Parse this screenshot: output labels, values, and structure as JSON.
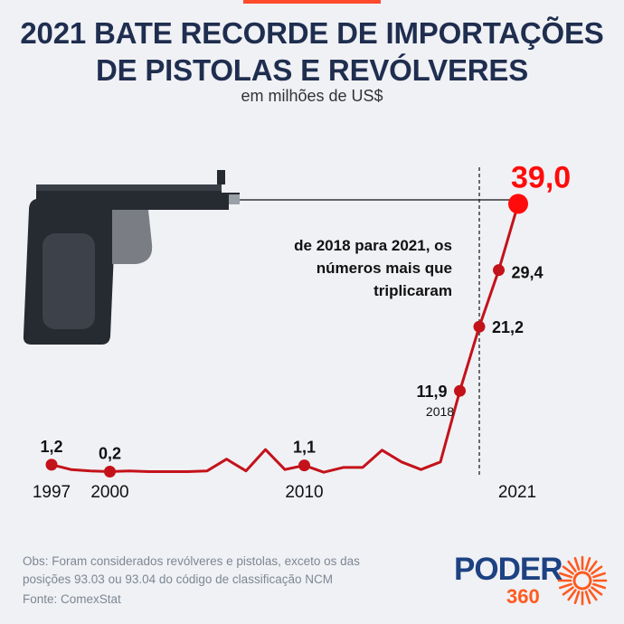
{
  "header": {
    "title_line1": "2021 BATE RECORDE DE IMPORTAÇÕES",
    "title_line2": "DE PISTOLAS E REVÓLVERES",
    "subtitle": "em milhões de US$"
  },
  "annotation": {
    "line1": "de 2018 para 2021, os",
    "line2": "números mais que",
    "line3": "triplicaram"
  },
  "footer": {
    "obs_line1": "Obs: Foram considerados revólveres e pistolas, exceto os das",
    "obs_line2": "posições 93.03 ou 93.04 do código de classificação NCM",
    "source": "Fonte: ComexStat"
  },
  "brand": {
    "name": "PODER",
    "number": "360"
  },
  "colors": {
    "series": "#c4121a",
    "highlight": "#ff0b0b",
    "title": "#1f2e4f"
  },
  "illustration": {
    "icon": "pistol-icon"
  },
  "chart_data": {
    "type": "line",
    "x": [
      1997,
      1998,
      1999,
      2000,
      2001,
      2002,
      2003,
      2004,
      2005,
      2006,
      2007,
      2008,
      2009,
      2010,
      2011,
      2012,
      2013,
      2014,
      2015,
      2016,
      2017,
      2018,
      2019,
      2020,
      2021
    ],
    "series": [
      {
        "values": [
          1.2,
          0.5,
          0.3,
          0.2,
          0.3,
          0.2,
          0.2,
          0.2,
          0.3,
          2.0,
          0.3,
          3.4,
          0.5,
          1.1,
          0.1,
          0.8,
          0.8,
          3.3,
          1.6,
          0.5,
          1.6,
          11.9,
          21.2,
          29.4,
          39.0
        ]
      }
    ],
    "labels": [
      {
        "x": 1997,
        "text": "1,2"
      },
      {
        "x": 2000,
        "text": "0,2"
      },
      {
        "x": 2010,
        "text": "1,1"
      },
      {
        "x": 2018,
        "text": "11,9"
      },
      {
        "x": 2019,
        "text": "21,2"
      },
      {
        "x": 2020,
        "text": "29,4"
      },
      {
        "x": 2021,
        "text": "39,0"
      }
    ],
    "markers": [
      1997,
      2000,
      2010,
      2018,
      2019,
      2020
    ],
    "highlight_marker": 2021,
    "x_tick_labels": [
      {
        "x": 1997,
        "text": "1997"
      },
      {
        "x": 2000,
        "text": "2000"
      },
      {
        "x": 2010,
        "text": "2010"
      },
      {
        "x": 2021,
        "text": "2021"
      }
    ],
    "secondary_tick": {
      "x": 2018,
      "text": "2018"
    },
    "reference_x": 2019,
    "ylim": [
      0,
      40
    ],
    "grid": false
  }
}
